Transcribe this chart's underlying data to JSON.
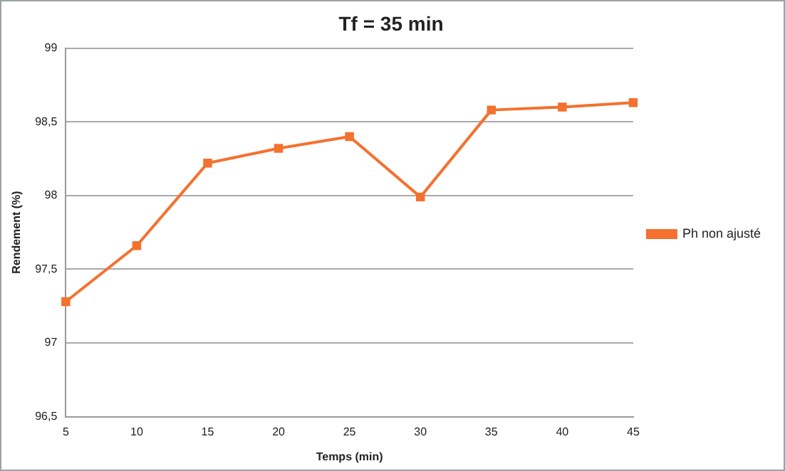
{
  "chart_data": {
    "type": "line",
    "title": "Tf = 35 min",
    "xlabel": "Temps (min)",
    "ylabel": "Rendement (%)",
    "categories": [
      "5",
      "10",
      "15",
      "20",
      "25",
      "30",
      "35",
      "40",
      "45"
    ],
    "series": [
      {
        "name": "Ph non ajusté",
        "color": "#f4712f",
        "values": [
          97.28,
          97.66,
          98.22,
          98.32,
          98.4,
          97.99,
          98.58,
          98.6,
          98.63
        ]
      }
    ],
    "ylim": [
      96.5,
      99
    ],
    "yticks": [
      {
        "value": 96.5,
        "label": "96,5"
      },
      97,
      {
        "value": 97.5,
        "label": "97,5"
      },
      98,
      {
        "value": 98.5,
        "label": "98,5"
      },
      99
    ],
    "grid": "y",
    "legend": "right",
    "marker": "square",
    "line_style": "solid"
  }
}
